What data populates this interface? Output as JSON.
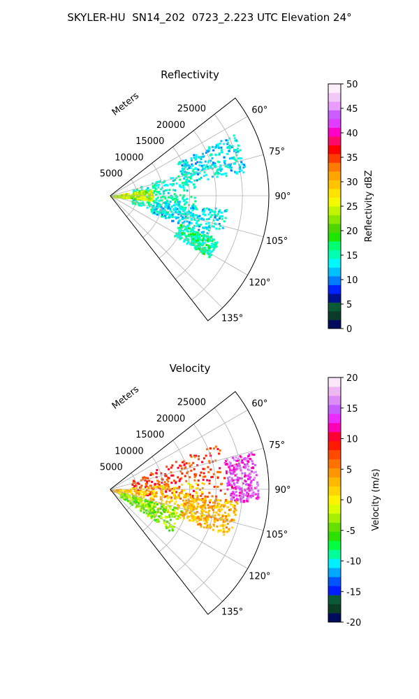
{
  "figure_title": "SKYLER-HU  SN14_202  0723_2.223 UTC Elevation 24°",
  "colors": {
    "reflectivity_scale": [
      "#000b5e",
      "#0c3a2c",
      "#0a5a38",
      "#00118f",
      "#0022ff",
      "#007cff",
      "#00c0ff",
      "#00f8ff",
      "#00ffb0",
      "#00ff70",
      "#1ee600",
      "#4fd600",
      "#8ae700",
      "#c2f300",
      "#f4fb00",
      "#ffe200",
      "#ffc300",
      "#ffa500",
      "#ff7b00",
      "#ff3c00",
      "#ff0000",
      "#ff0a6a",
      "#ff00c8",
      "#e03dff",
      "#c95dff",
      "#e99cff",
      "#f3c8f7",
      "#fdeefb"
    ],
    "velocity_scale": [
      "#000b5e",
      "#0a3d24",
      "#0a5a38",
      "#001eff",
      "#0055ff",
      "#00a8ff",
      "#00f0ff",
      "#00ff9a",
      "#00ff40",
      "#2ee000",
      "#66e000",
      "#a6f000",
      "#d9ff00",
      "#fff300",
      "#ffd400",
      "#ffb800",
      "#ff9500",
      "#ff7200",
      "#ff4a00",
      "#ff1a00",
      "#ff0035",
      "#ff00b6",
      "#ea2cff",
      "#c55dff",
      "#dc8df5",
      "#eeb7f2",
      "#fbe6fa"
    ],
    "grid": "#b0b0b0"
  },
  "chart_data": [
    {
      "type": "heatmap",
      "subtype": "polar-sector-ppi",
      "title": "Reflectivity",
      "radial_axis_label": "Meters",
      "radial_ticks": [
        5000,
        10000,
        15000,
        20000,
        25000
      ],
      "radial_range": [
        0,
        30000
      ],
      "angle_ticks": [
        60,
        75,
        90,
        105,
        120,
        135
      ],
      "angle_tick_labels": [
        "60°",
        "75°",
        "90°",
        "105°",
        "120°",
        "135°"
      ],
      "angle_range": [
        52,
        142
      ],
      "grid": true,
      "colorbar": {
        "label": "Reflectivity dBZ",
        "range": [
          0,
          50
        ],
        "ticks": [
          0,
          5,
          10,
          15,
          20,
          25,
          30,
          35,
          40,
          45,
          50
        ]
      },
      "echo_regions": [
        {
          "az_range": [
            63,
            80
          ],
          "r_range": [
            14000,
            26000
          ],
          "value": 13
        },
        {
          "az_range": [
            72,
            108
          ],
          "r_range": [
            4000,
            16000
          ],
          "value": 15
        },
        {
          "az_range": [
            80,
            96
          ],
          "r_range": [
            0,
            8000
          ],
          "value": 24
        },
        {
          "az_range": [
            96,
            112
          ],
          "r_range": [
            8000,
            22000
          ],
          "value": 13
        },
        {
          "az_range": [
            112,
            122
          ],
          "r_range": [
            14000,
            22000
          ],
          "value": 16
        }
      ]
    },
    {
      "type": "heatmap",
      "subtype": "polar-sector-ppi",
      "title": "Velocity",
      "radial_axis_label": "Meters",
      "radial_ticks": [
        5000,
        10000,
        15000,
        20000,
        25000
      ],
      "radial_range": [
        0,
        30000
      ],
      "angle_ticks": [
        60,
        75,
        90,
        105,
        120,
        135
      ],
      "angle_tick_labels": [
        "60°",
        "75°",
        "90°",
        "105°",
        "120°",
        "135°"
      ],
      "angle_range": [
        52,
        142
      ],
      "grid": true,
      "colorbar": {
        "label": "Velocity (m/s)",
        "range": [
          -20,
          20
        ],
        "ticks": [
          -20,
          -15,
          -10,
          -5,
          0,
          5,
          10,
          15,
          20
        ]
      },
      "echo_regions": [
        {
          "az_range": [
            66,
            98
          ],
          "r_range": [
            4000,
            22000
          ],
          "value": 8
        },
        {
          "az_range": [
            75,
            95
          ],
          "r_range": [
            22000,
            28000
          ],
          "value": 14
        },
        {
          "az_range": [
            85,
            112
          ],
          "r_range": [
            0,
            18000
          ],
          "value": 2
        },
        {
          "az_range": [
            105,
            125
          ],
          "r_range": [
            2000,
            14000
          ],
          "value": -4
        },
        {
          "az_range": [
            95,
            112
          ],
          "r_range": [
            14000,
            24000
          ],
          "value": 3
        }
      ]
    }
  ]
}
